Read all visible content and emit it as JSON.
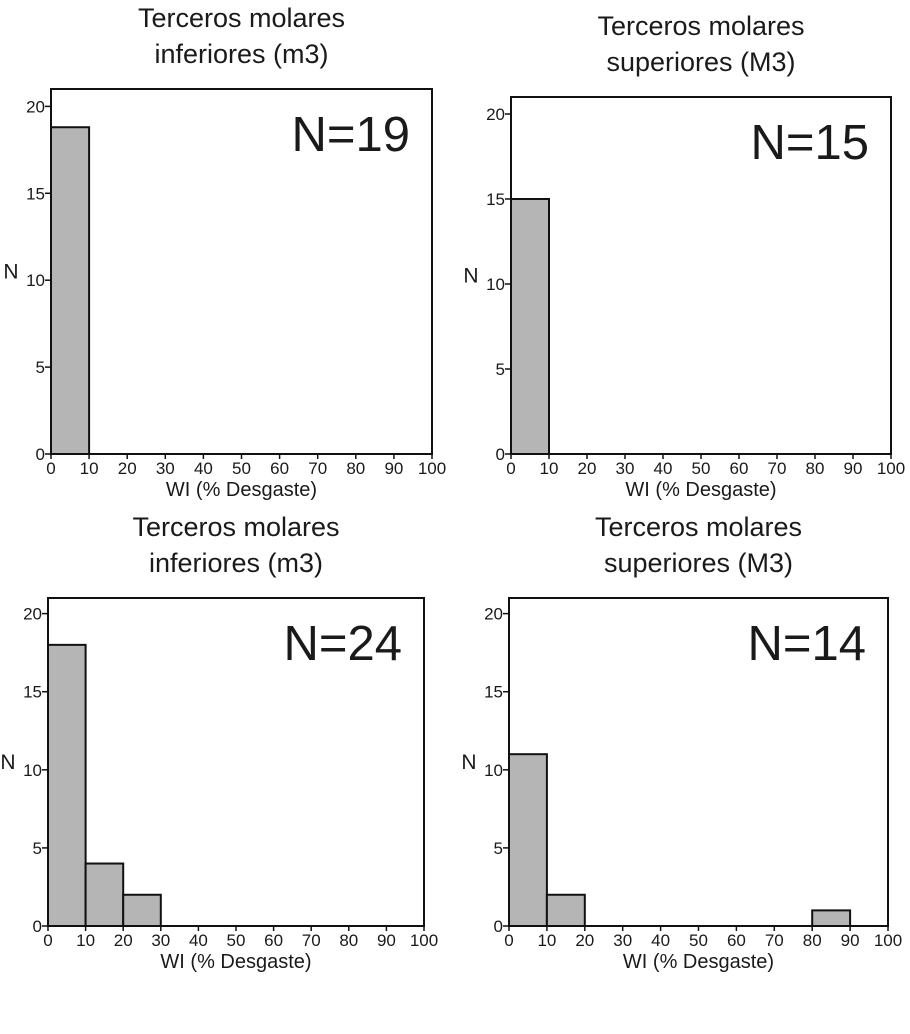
{
  "chart_data": [
    {
      "type": "bar",
      "title_lines": [
        "Terceros molares",
        "inferiores (m3)"
      ],
      "n_label": "N=19",
      "ylabel": "N",
      "xlabel": "WI (% Desgaste)",
      "bin_edges": [
        0,
        10,
        20,
        30,
        40,
        50,
        60,
        70,
        80,
        90,
        100
      ],
      "values": [
        18.8,
        0,
        0,
        0,
        0,
        0,
        0,
        0,
        0,
        0
      ],
      "xlim": [
        0,
        100
      ],
      "ylim": [
        0,
        21
      ],
      "yticks": [
        0,
        5,
        10,
        15,
        20
      ],
      "xticks": [
        0,
        10,
        20,
        30,
        40,
        50,
        60,
        70,
        80,
        90,
        100
      ],
      "grid": false
    },
    {
      "type": "bar",
      "title_lines": [
        "Terceros molares",
        "superiores (M3)"
      ],
      "n_label": "N=15",
      "ylabel": "N",
      "xlabel": "WI (% Desgaste)",
      "bin_edges": [
        0,
        10,
        20,
        30,
        40,
        50,
        60,
        70,
        80,
        90,
        100
      ],
      "values": [
        15,
        0,
        0,
        0,
        0,
        0,
        0,
        0,
        0,
        0
      ],
      "xlim": [
        0,
        100
      ],
      "ylim": [
        0,
        21
      ],
      "yticks": [
        0,
        5,
        10,
        15,
        20
      ],
      "xticks": [
        0,
        10,
        20,
        30,
        40,
        50,
        60,
        70,
        80,
        90,
        100
      ],
      "grid": false
    },
    {
      "type": "bar",
      "title_lines": [
        "Terceros molares",
        "inferiores (m3)"
      ],
      "n_label": "N=24",
      "ylabel": "N",
      "xlabel": "WI (% Desgaste)",
      "bin_edges": [
        0,
        10,
        20,
        30,
        40,
        50,
        60,
        70,
        80,
        90,
        100
      ],
      "values": [
        18,
        4,
        2,
        0,
        0,
        0,
        0,
        0,
        0,
        0
      ],
      "xlim": [
        0,
        100
      ],
      "ylim": [
        0,
        21
      ],
      "yticks": [
        0,
        5,
        10,
        15,
        20
      ],
      "xticks": [
        0,
        10,
        20,
        30,
        40,
        50,
        60,
        70,
        80,
        90,
        100
      ],
      "grid": false
    },
    {
      "type": "bar",
      "title_lines": [
        "Terceros molares",
        "superiores (M3)"
      ],
      "n_label": "N=14",
      "ylabel": "N",
      "xlabel": "WI (% Desgaste)",
      "bin_edges": [
        0,
        10,
        20,
        30,
        40,
        50,
        60,
        70,
        80,
        90,
        100
      ],
      "values": [
        11,
        2,
        0,
        0,
        0,
        0,
        0,
        0,
        1,
        0
      ],
      "xlim": [
        0,
        100
      ],
      "ylim": [
        0,
        21
      ],
      "yticks": [
        0,
        5,
        10,
        15,
        20
      ],
      "xticks": [
        0,
        10,
        20,
        30,
        40,
        50,
        60,
        70,
        80,
        90,
        100
      ],
      "grid": false
    }
  ]
}
